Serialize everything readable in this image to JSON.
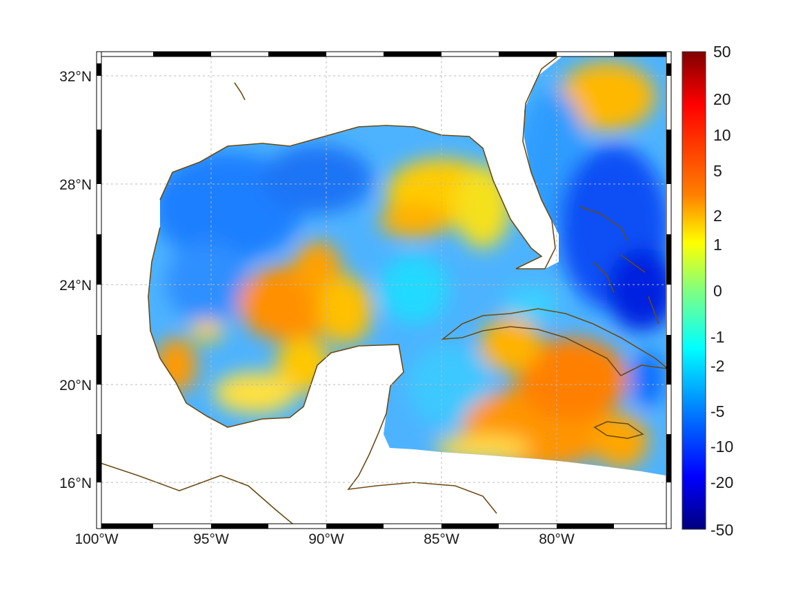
{
  "map": {
    "lon_labels": [
      "100°W",
      "95°W",
      "90°W",
      "85°W",
      "80°W"
    ],
    "lat_labels": [
      "32°N",
      "28°N",
      "24°N",
      "20°N",
      "16°N"
    ],
    "lon_ticks": [
      -100,
      -95,
      -90,
      -85,
      -80
    ],
    "lat_ticks": [
      32,
      28,
      24,
      20,
      16
    ],
    "lon_range": [
      -100,
      -75
    ],
    "lat_range": [
      14.3,
      33
    ],
    "grid": true,
    "coast_color": "#6b4a12"
  },
  "colorbar": {
    "labels": [
      "50",
      "20",
      "10",
      "5",
      "2",
      "1",
      "0",
      "-1",
      "-2",
      "-5",
      "-10",
      "-20",
      "-50"
    ],
    "colormap": "jet",
    "colors": [
      "#800000",
      "#ff0000",
      "#ff8000",
      "#ffff00",
      "#80ff80",
      "#00ffff",
      "#0080ff",
      "#0000ff",
      "#000080"
    ]
  }
}
